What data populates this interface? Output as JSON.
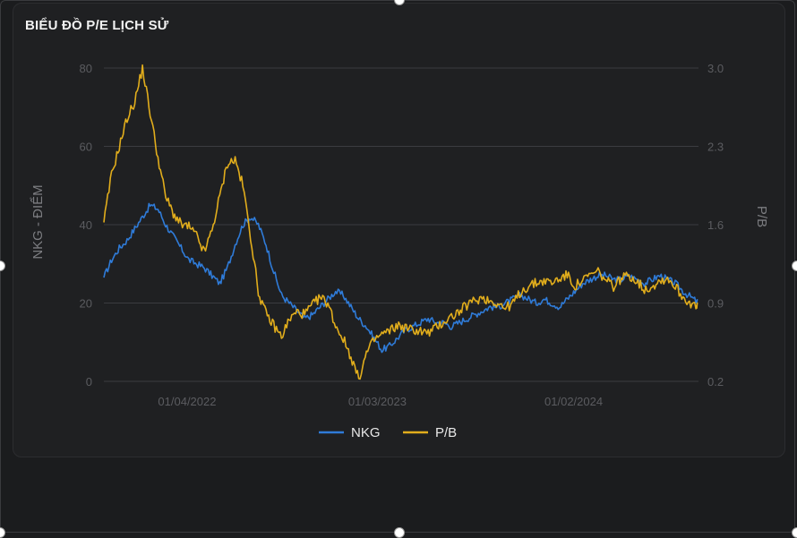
{
  "card": {
    "title": "BIỂU ĐỒ P/E LỊCH SỬ"
  },
  "chart_data": {
    "type": "line",
    "title": "BIỂU ĐỒ P/E LỊCH SỬ",
    "y_left": {
      "label": "NKG - ĐIỂM",
      "ticks": [
        "0",
        "20",
        "40",
        "60",
        "80"
      ],
      "range": [
        0,
        80
      ]
    },
    "y_right": {
      "label": "P/B",
      "ticks": [
        "0.2",
        "0.9",
        "1.6",
        "2.3",
        "3.0"
      ],
      "range": [
        0.2,
        3.0
      ]
    },
    "x_ticks": [
      "01/04/2022",
      "01/03/2023",
      "01/02/2024"
    ],
    "grid": true,
    "legend_position": "bottom",
    "series": [
      {
        "name": "NKG",
        "axis": "left",
        "color": "#2f7bd8",
        "values": [
          26.5,
          31,
          34,
          36,
          39,
          42,
          45,
          44,
          40,
          37,
          34,
          31,
          30,
          29,
          27,
          25,
          29,
          35,
          40,
          42,
          40,
          35,
          28,
          22,
          20,
          18,
          16,
          17,
          19,
          21,
          23,
          22,
          19,
          16,
          14,
          11,
          8,
          9,
          11,
          13,
          14,
          15,
          16,
          15,
          15,
          14,
          15,
          16,
          17,
          18,
          19,
          19,
          20,
          21,
          22,
          21,
          20,
          21,
          20,
          19,
          21,
          23,
          25,
          26,
          27,
          27,
          26,
          26,
          27,
          26,
          25,
          26,
          27,
          26,
          25,
          23,
          21.5,
          20
        ]
      },
      {
        "name": "P/B",
        "axis": "right",
        "color": "#e1ad1c",
        "values": [
          1.62,
          2.05,
          2.3,
          2.55,
          2.7,
          3.0,
          2.6,
          2.2,
          1.85,
          1.7,
          1.6,
          1.58,
          1.5,
          1.35,
          1.55,
          1.85,
          2.15,
          2.18,
          1.95,
          1.5,
          1.0,
          0.8,
          0.7,
          0.6,
          0.75,
          0.82,
          0.8,
          0.88,
          0.95,
          0.9,
          0.7,
          0.58,
          0.42,
          0.22,
          0.45,
          0.57,
          0.62,
          0.65,
          0.7,
          0.68,
          0.66,
          0.65,
          0.63,
          0.68,
          0.73,
          0.78,
          0.82,
          0.88,
          0.92,
          0.95,
          0.92,
          0.9,
          0.85,
          0.9,
          1.0,
          1.05,
          1.08,
          1.1,
          1.08,
          1.12,
          1.15,
          1.05,
          1.1,
          1.15,
          1.18,
          1.1,
          1.05,
          1.12,
          1.15,
          1.1,
          1.02,
          1.05,
          1.1,
          1.12,
          1.05,
          0.95,
          0.9,
          0.85
        ]
      }
    ]
  }
}
